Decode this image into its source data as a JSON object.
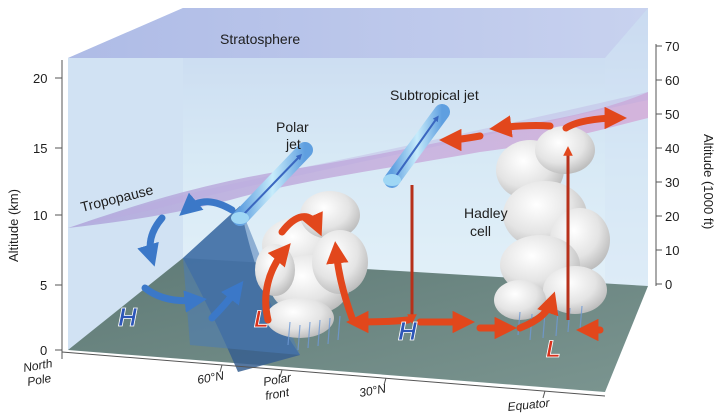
{
  "labels": {
    "stratosphere": "Stratosphere",
    "tropopause": "Tropopause",
    "polar_jet_line1": "Polar",
    "polar_jet_line2": "jet",
    "subtropical_jet": "Subtropical jet",
    "hadley_line1": "Hadley",
    "hadley_line2": "cell",
    "high_symbol": "H",
    "low_symbol": "L"
  },
  "axes": {
    "left_title": "Altitude (km)",
    "left_ticks": [
      "0",
      "5",
      "10",
      "15",
      "20"
    ],
    "right_title": "Altitude (1000 ft)",
    "right_ticks": [
      "0",
      "10",
      "20",
      "30",
      "40",
      "50",
      "60",
      "70"
    ]
  },
  "latitudes": {
    "north_pole_line1": "North",
    "north_pole_line2": "Pole",
    "lat60": "60°N",
    "polar_front_line1": "Polar",
    "polar_front_line2": "front",
    "lat30": "30°N",
    "equator": "Equator"
  },
  "colors": {
    "warm_arrow": "#e2471c",
    "cool_arrow": "#3b78c8",
    "ground": "#6e8a84",
    "sky": "#cfe7f4",
    "tropopause_band": "#b8a7d9"
  }
}
